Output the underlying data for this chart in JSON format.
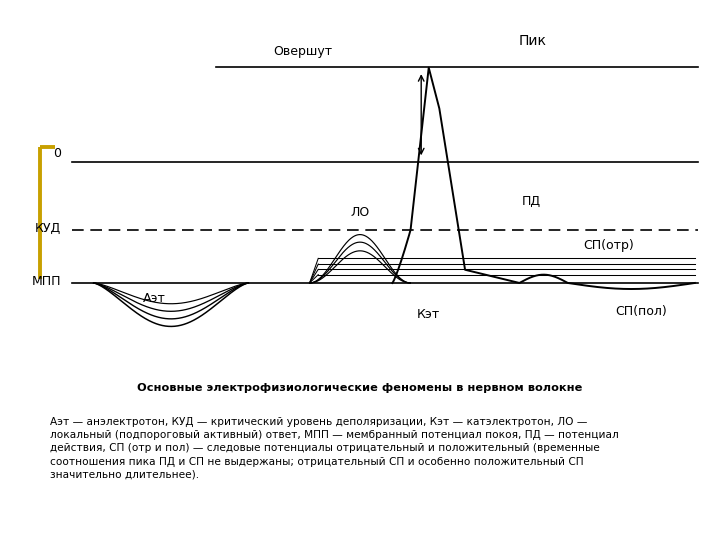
{
  "bg_color": "#ffffff",
  "fig_width": 7.2,
  "fig_height": 5.4,
  "dpi": 100,
  "overshoot_level": 0.85,
  "zero_level": 0.6,
  "kud_level": 0.42,
  "mpp_level": 0.28,
  "title_bold": "Основные электрофизиологические феномены в нервном волокне",
  "caption_text": "Аэт — анэлектротон, КУД — критический уровень деполяризации, Кэт — катэлектротон, ЛО — локальный (подпороговый активный) ответ, МПП — мембранный потенциал покоя, ПД — потенциал действия, СП (отр и пол) — следовые потенциалы отрицательный и положительный (временные соотношения пика ПД и СП не выдержаны; отрицательный СП и особенно положительный СП значительно длительнее).",
  "bracket_color": "#c8a000",
  "line_color": "#000000"
}
